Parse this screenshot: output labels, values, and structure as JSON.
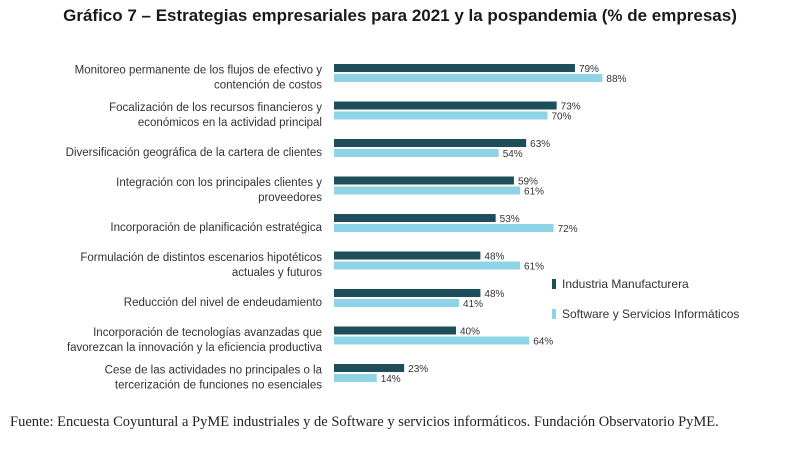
{
  "chart_data": {
    "type": "bar",
    "orientation": "horizontal",
    "title": "Gráfico 7 – Estrategias empresariales para 2021 y la pospandemia (% de empresas)",
    "categories": [
      [
        "Monitoreo permanente de los flujos de efectivo y",
        "contención de costos"
      ],
      [
        "Focalización de los recursos financieros y",
        "económicos en la actividad principal"
      ],
      [
        "Diversificación geográfica de la cartera de clientes"
      ],
      [
        "Integración con los principales clientes y",
        "proveedores"
      ],
      [
        "Incorporación de planificación estratégica"
      ],
      [
        "Formulación de distintos escenarios hipotéticos",
        "actuales y futuros"
      ],
      [
        "Reducción del nivel de endeudamiento"
      ],
      [
        "Incorporación de tecnologías avanzadas que",
        "favorezcan la innovación y la eficiencia productiva"
      ],
      [
        "Cese de las actividades no principales o la",
        "tercerización de funciones no esenciales"
      ]
    ],
    "series": [
      {
        "name": "Industria Manufacturera",
        "color": "#1f4e5b",
        "values": [
          79,
          73,
          63,
          59,
          53,
          48,
          48,
          40,
          23
        ]
      },
      {
        "name": "Software y Servicios Informáticos",
        "color": "#8fd3e6",
        "values": [
          88,
          70,
          54,
          61,
          72,
          61,
          41,
          64,
          14
        ]
      }
    ],
    "value_suffix": "%",
    "xlim": [
      0,
      100
    ],
    "legend_position": "right"
  },
  "source_text": "Fuente: Encuesta Coyuntural a PyME industriales y de Software y servicios informáticos. Fundación Observatorio PyME."
}
